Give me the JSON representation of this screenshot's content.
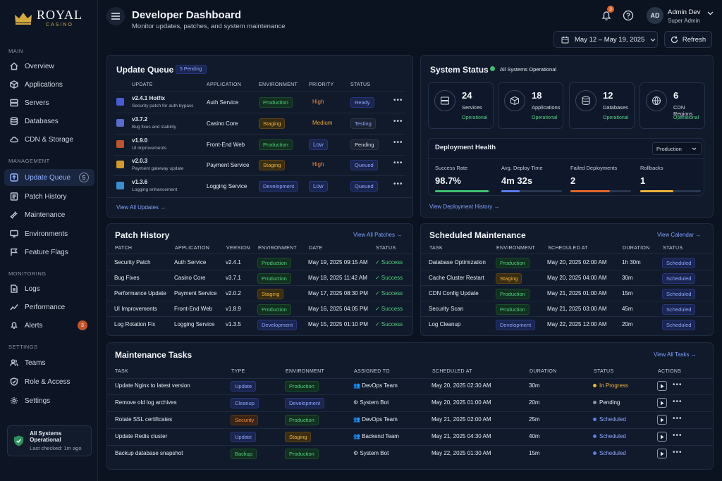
{
  "brand": {
    "name": "ROYAL",
    "sub": "CASINO"
  },
  "sidebar": {
    "sections": [
      "MAIN",
      "MANAGEMENT",
      "MONITORING",
      "SETTINGS"
    ],
    "main": [
      "Overview",
      "Applications",
      "Servers",
      "Databases",
      "CDN & Storage"
    ],
    "management": [
      "Update Queue",
      "Patch History",
      "Maintenance",
      "Environments",
      "Feature Flags"
    ],
    "update_queue_count": "5",
    "monitoring": [
      "Logs",
      "Performance",
      "Alerts"
    ],
    "alerts_count": "3",
    "settings": [
      "Teams",
      "Role & Access",
      "Settings"
    ],
    "status_title": "All Systems Operational",
    "status_sub": "Last checked: 1m ago"
  },
  "header": {
    "title": "Developer Dashboard",
    "subtitle": "Monitor updates, patches, and system maintenance",
    "notif_count": "3",
    "avatar": "AD",
    "user_name": "Admin Dev",
    "user_role": "Super Admin",
    "date_range": "May 12 – May 19, 2025",
    "refresh": "Refresh"
  },
  "update_queue": {
    "title": "Update Queue",
    "badge": "5 Pending",
    "headers": [
      "UPDATE",
      "APPLICATION",
      "ENVIRONMENT",
      "PRIORITY",
      "STATUS"
    ],
    "rows": [
      {
        "name": "v2.4.1 Hotfix",
        "desc": "Security patch for auth bypass",
        "app": "Auth Service",
        "env": "Production",
        "prio": "High",
        "status": "Ready"
      },
      {
        "name": "v3.7.2",
        "desc": "Bug fixes and stability",
        "app": "Casino Core",
        "env": "Staging",
        "prio": "Medium",
        "status": "Testing"
      },
      {
        "name": "v1.9.0",
        "desc": "UI improvements",
        "app": "Front-End Web",
        "env": "Production",
        "prio": "Low",
        "status": "Pending"
      },
      {
        "name": "v2.0.3",
        "desc": "Payment gateway update",
        "app": "Payment Service",
        "env": "Staging",
        "prio": "High",
        "status": "Queued"
      },
      {
        "name": "v1.3.6",
        "desc": "Logging enhancement",
        "app": "Logging Service",
        "env": "Development",
        "prio": "Low",
        "status": "Queued"
      }
    ],
    "view_all": "View All Updates"
  },
  "system_status": {
    "title": "System Status",
    "state": "All Systems Operational",
    "stats": [
      {
        "num": "24",
        "label": "Services",
        "status": "Operational"
      },
      {
        "num": "18",
        "label": "Applications",
        "status": "Operational"
      },
      {
        "num": "12",
        "label": "Databases",
        "status": "Operational"
      },
      {
        "num": "6",
        "label": "CDN Regions",
        "status": "Operational"
      }
    ],
    "deploy_title": "Deployment Health",
    "deploy_env": "Production",
    "metrics": [
      {
        "label": "Success Rate",
        "value": "98.7%",
        "fill": 0.98,
        "color": "#3fbf6f"
      },
      {
        "label": "Avg. Deploy Time",
        "value": "4m 32s",
        "fill": 0.3,
        "color": "#5a7cf0"
      },
      {
        "label": "Failed Deployments",
        "value": "2",
        "fill": 0.65,
        "color": "#e0662a"
      },
      {
        "label": "Rollbacks",
        "value": "1",
        "fill": 0.55,
        "color": "#e8b23a"
      }
    ],
    "view_history": "View Deployment History"
  },
  "patch_history": {
    "title": "Patch History",
    "view_all": "View All Patches",
    "headers": [
      "PATCH",
      "APPLICATION",
      "VERSION",
      "ENVIRONMENT",
      "DATE",
      "STATUS"
    ],
    "rows": [
      {
        "patch": "Security Patch",
        "app": "Auth Service",
        "ver": "v2.4.1",
        "env": "Production",
        "date": "May 19, 2025 09:15 AM",
        "status": "Success"
      },
      {
        "patch": "Bug Fixes",
        "app": "Casino Core",
        "ver": "v3.7.1",
        "env": "Production",
        "date": "May 18, 2025 11:42 AM",
        "status": "Success"
      },
      {
        "patch": "Performance Update",
        "app": "Payment Service",
        "ver": "v2.0.2",
        "env": "Staging",
        "date": "May 17, 2025 08:30 PM",
        "status": "Success"
      },
      {
        "patch": "UI Improvements",
        "app": "Front-End Web",
        "ver": "v1.8.9",
        "env": "Production",
        "date": "May 16, 2025 04:05 PM",
        "status": "Success"
      },
      {
        "patch": "Log Rotation Fix",
        "app": "Logging Service",
        "ver": "v1.3.5",
        "env": "Development",
        "date": "May 15, 2025 01:10 PM",
        "status": "Success"
      }
    ]
  },
  "scheduled_maintenance": {
    "title": "Scheduled Maintenance",
    "view_all": "View Calendar",
    "headers": [
      "TASK",
      "ENVIRONMENT",
      "SCHEDULED AT",
      "DURATION",
      "STATUS"
    ],
    "rows": [
      {
        "task": "Database Optimization",
        "env": "Production",
        "at": "May 20, 2025 02:00 AM",
        "dur": "1h 30m",
        "status": "Scheduled"
      },
      {
        "task": "Cache Cluster Restart",
        "env": "Staging",
        "at": "May 20, 2025 04:00 AM",
        "dur": "30m",
        "status": "Scheduled"
      },
      {
        "task": "CDN Config Update",
        "env": "Production",
        "at": "May 21, 2025 01:00 AM",
        "dur": "15m",
        "status": "Scheduled"
      },
      {
        "task": "Security Scan",
        "env": "Production",
        "at": "May 21, 2025 03:00 AM",
        "dur": "45m",
        "status": "Scheduled"
      },
      {
        "task": "Log Cleanup",
        "env": "Development",
        "at": "May 22, 2025 12:00 AM",
        "dur": "20m",
        "status": "Scheduled"
      }
    ]
  },
  "maintenance_tasks": {
    "title": "Maintenance Tasks",
    "view_all": "View All Tasks",
    "headers": [
      "TASK",
      "TYPE",
      "ENVIRONMENT",
      "ASSIGNED TO",
      "SCHEDULED AT",
      "DURATION",
      "STATUS",
      "ACTIONS"
    ],
    "rows": [
      {
        "task": "Update Nginx to latest version",
        "type": "Update",
        "env": "Production",
        "who": "DevOps Team",
        "at": "May 20, 2025 02:30 AM",
        "dur": "30m",
        "status": "In Progress"
      },
      {
        "task": "Remove old log archives",
        "type": "Cleanup",
        "env": "Development",
        "who": "System Bot",
        "at": "May 20, 2025 01:00 AM",
        "dur": "20m",
        "status": "Pending"
      },
      {
        "task": "Rotate SSL certificates",
        "type": "Security",
        "env": "Production",
        "who": "DevOps Team",
        "at": "May 21, 2025 02:00 AM",
        "dur": "25m",
        "status": "Scheduled"
      },
      {
        "task": "Update Redis cluster",
        "type": "Update",
        "env": "Staging",
        "who": "Backend Team",
        "at": "May 21, 2025 04:30 AM",
        "dur": "40m",
        "status": "Scheduled"
      },
      {
        "task": "Backup database snapshot",
        "type": "Backup",
        "env": "Production",
        "who": "System Bot",
        "at": "May 22, 2025 01:30 AM",
        "dur": "15m",
        "status": "Scheduled"
      }
    ]
  }
}
